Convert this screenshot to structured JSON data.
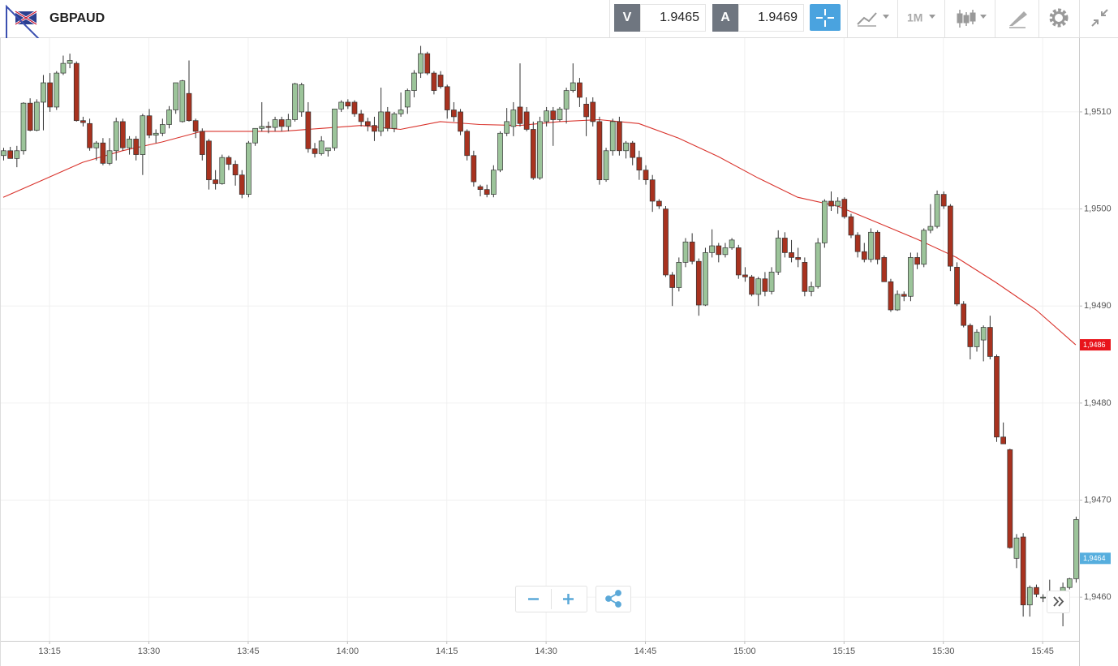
{
  "toolbar": {
    "symbol": "GBPAUD",
    "bid_label": "V",
    "bid": "1.9465",
    "ask_label": "A",
    "ask": "1.9469",
    "timeframe": "1M"
  },
  "chart_data": {
    "type": "candlestick",
    "grid": true,
    "up_color": "#9cc49a",
    "down_color": "#a8321f",
    "wick_color": "#333333",
    "ylim": [
      1.94555,
      1.95176
    ],
    "yticks": [
      {
        "value": 1.946,
        "label": "1,9460"
      },
      {
        "value": 1.947,
        "label": "1,9470"
      },
      {
        "value": 1.948,
        "label": "1,9480"
      },
      {
        "value": 1.949,
        "label": "1,9490"
      },
      {
        "value": 1.95,
        "label": "1,9500"
      },
      {
        "value": 1.951,
        "label": "1,9510"
      }
    ],
    "categories": [
      null,
      null,
      null,
      null,
      null,
      null,
      null,
      "13:15",
      null,
      null,
      null,
      null,
      null,
      null,
      null,
      null,
      null,
      null,
      null,
      null,
      null,
      null,
      "13:30",
      null,
      null,
      null,
      null,
      null,
      null,
      null,
      null,
      null,
      null,
      null,
      null,
      null,
      null,
      "13:45",
      null,
      null,
      null,
      null,
      null,
      null,
      null,
      null,
      null,
      null,
      null,
      null,
      null,
      null,
      "14:00",
      null,
      null,
      null,
      null,
      null,
      null,
      null,
      null,
      null,
      null,
      null,
      null,
      null,
      null,
      "14:15",
      null,
      null,
      null,
      null,
      null,
      null,
      null,
      null,
      null,
      null,
      null,
      null,
      null,
      null,
      "14:30",
      null,
      null,
      null,
      null,
      null,
      null,
      null,
      null,
      null,
      null,
      null,
      null,
      null,
      null,
      "14:45",
      null,
      null,
      null,
      null,
      null,
      null,
      null,
      null,
      null,
      null,
      null,
      null,
      null,
      null,
      "15:00",
      null,
      null,
      null,
      null,
      null,
      null,
      null,
      null,
      null,
      null,
      null,
      null,
      null,
      null,
      "15:15",
      null,
      null,
      null,
      null,
      null,
      null,
      null,
      null,
      null,
      null,
      null,
      null,
      null,
      null,
      "15:30",
      null,
      null,
      null,
      null,
      null,
      null,
      null,
      null,
      null,
      null,
      null,
      null,
      null,
      null,
      "15:45",
      null,
      null,
      null,
      null,
      null
    ],
    "open": [
      1.95055,
      1.9506,
      1.95052,
      1.9506,
      1.95109,
      1.95081,
      1.9511,
      1.9513,
      1.95105,
      1.9514,
      1.9515,
      1.9515,
      1.95091,
      1.95088,
      1.95063,
      1.95068,
      1.95047,
      1.9506,
      1.9509,
      1.95063,
      1.95072,
      1.95056,
      1.95096,
      1.95076,
      1.95078,
      1.95087,
      1.95102,
      1.9509,
      1.95119,
      1.95091,
      1.9508,
      1.9507,
      1.9503,
      1.95026,
      1.95053,
      1.95046,
      1.95035,
      1.95015,
      1.95068,
      1.95083,
      1.95085,
      1.95084,
      1.95092,
      1.95085,
      1.95092,
      1.951,
      1.951,
      1.95062,
      1.95057,
      1.9506,
      1.95063,
      1.95103,
      1.9511,
      1.9511,
      1.95098,
      1.9509,
      1.95086,
      1.9508,
      1.951,
      1.95083,
      1.95098,
      1.95105,
      1.95122,
      1.9514,
      1.9516,
      1.9514,
      1.95138,
      1.95126,
      1.95102,
      1.951,
      1.9508,
      1.95055,
      1.95023,
      1.9502,
      1.95015,
      1.9504,
      1.95078,
      1.95085,
      1.95105,
      1.951,
      1.95082,
      1.95032,
      1.9509,
      1.95101,
      1.95092,
      1.95103,
      1.95122,
      1.9513,
      1.95108,
      1.9511,
      1.9509,
      1.9503,
      1.9506,
      1.9509,
      1.9506,
      1.95068,
      1.95053,
      1.9504,
      1.9503,
      1.95008,
      1.95,
      1.94932,
      1.94919,
      1.94945,
      1.94966,
      1.94946,
      1.94901,
      1.94955,
      1.94962,
      1.94953,
      1.9496,
      1.9496,
      1.94932,
      1.9493,
      1.94912,
      1.94928,
      1.94915,
      1.94935,
      1.9497,
      1.94955,
      1.9495,
      1.94945,
      1.94915,
      1.9492,
      1.94965,
      1.95008,
      1.95003,
      1.9501,
      1.94992,
      1.94973,
      1.94956,
      1.94948,
      1.94976,
      1.9495,
      1.94925,
      1.94896,
      1.94912,
      1.9491,
      1.9495,
      1.94943,
      1.94978,
      1.94982,
      1.95015,
      1.95003,
      1.9494,
      1.94902,
      1.9488,
      1.94858,
      1.94865,
      1.94878,
      1.94848,
      1.94765,
      1.94752,
      1.9464,
      1.94662,
      1.94592,
      1.9461,
      1.946,
      1.946,
      1.94601,
      1.94603,
      1.9461,
      1.94619
    ],
    "high": [
      1.95063,
      1.95064,
      1.95065,
      1.9511,
      1.95114,
      1.95113,
      1.95138,
      1.9514,
      1.95142,
      1.95158,
      1.9516,
      1.95152,
      1.95095,
      1.95093,
      1.9507,
      1.95073,
      1.95073,
      1.95094,
      1.95093,
      1.95075,
      1.95075,
      1.95098,
      1.95103,
      1.95082,
      1.95093,
      1.95106,
      1.9513,
      1.95133,
      1.95153,
      1.95093,
      1.95083,
      1.95072,
      1.9504,
      1.95056,
      1.95055,
      1.9505,
      1.9504,
      1.9507,
      1.95083,
      1.9511,
      1.9509,
      1.95095,
      1.95095,
      1.95098,
      1.9513,
      1.9513,
      1.9511,
      1.95068,
      1.95075,
      1.95063,
      1.95103,
      1.95112,
      1.95113,
      1.95112,
      1.95102,
      1.95094,
      1.95095,
      1.95125,
      1.95105,
      1.951,
      1.9512,
      1.95124,
      1.95143,
      1.95168,
      1.95162,
      1.95142,
      1.95142,
      1.95128,
      1.9511,
      1.95103,
      1.95082,
      1.9506,
      1.95025,
      1.95025,
      1.95045,
      1.9508,
      1.95104,
      1.9511,
      1.9515,
      1.95105,
      1.9509,
      1.95095,
      1.95105,
      1.95105,
      1.95105,
      1.95125,
      1.9515,
      1.95135,
      1.95115,
      1.95115,
      1.95095,
      1.95063,
      1.95093,
      1.95095,
      1.9507,
      1.9507,
      1.9506,
      1.95045,
      1.95035,
      1.9501,
      1.95003,
      1.94935,
      1.9495,
      1.9497,
      1.94975,
      1.94949,
      1.9496,
      1.94979,
      1.94965,
      1.94965,
      1.9497,
      1.94963,
      1.9494,
      1.94932,
      1.9493,
      1.94935,
      1.9494,
      1.94978,
      1.94976,
      1.94968,
      1.9496,
      1.9495,
      1.94925,
      1.9497,
      1.9501,
      1.95018,
      1.95012,
      1.95012,
      1.94995,
      1.94976,
      1.94965,
      1.9498,
      1.94978,
      1.94952,
      1.94928,
      1.94916,
      1.94915,
      1.94955,
      1.94955,
      1.9498,
      1.95005,
      1.95019,
      1.95018,
      1.95005,
      1.94945,
      1.94905,
      1.94882,
      1.94876,
      1.9488,
      1.9489,
      1.9485,
      1.9478,
      1.94753,
      1.94665,
      1.94666,
      1.94612,
      1.94613,
      1.94603,
      1.94618,
      1.94606,
      1.94615,
      1.9462,
      1.94683
    ],
    "low": [
      1.9505,
      1.95052,
      1.95043,
      1.95056,
      1.9508,
      1.9508,
      1.95081,
      1.951,
      1.95102,
      1.95138,
      1.95145,
      1.9509,
      1.95085,
      1.9506,
      1.9505,
      1.95045,
      1.95045,
      1.9505,
      1.9506,
      1.95056,
      1.9505,
      1.95035,
      1.95073,
      1.95068,
      1.95075,
      1.95083,
      1.95098,
      1.95089,
      1.9509,
      1.95073,
      1.9505,
      1.9502,
      1.9502,
      1.95025,
      1.9504,
      1.95024,
      1.95011,
      1.95012,
      1.95065,
      1.9508,
      1.95078,
      1.9508,
      1.9508,
      1.9508,
      1.9509,
      1.95095,
      1.95058,
      1.95053,
      1.95055,
      1.95054,
      1.9506,
      1.951,
      1.95103,
      1.95095,
      1.95085,
      1.9508,
      1.9507,
      1.95075,
      1.9508,
      1.95079,
      1.95095,
      1.95098,
      1.95115,
      1.95135,
      1.95138,
      1.95118,
      1.95124,
      1.95093,
      1.9509,
      1.95076,
      1.9505,
      1.95023,
      1.95013,
      1.95012,
      1.95012,
      1.95038,
      1.95075,
      1.95075,
      1.95085,
      1.9508,
      1.9503,
      1.9503,
      1.95085,
      1.95065,
      1.9509,
      1.95088,
      1.9512,
      1.95105,
      1.95075,
      1.95085,
      1.95025,
      1.95028,
      1.95055,
      1.95055,
      1.95052,
      1.95045,
      1.9503,
      1.95025,
      1.94997,
      1.95,
      1.9493,
      1.949,
      1.94915,
      1.9494,
      1.94943,
      1.9489,
      1.949,
      1.9495,
      1.94945,
      1.9495,
      1.94958,
      1.94928,
      1.94925,
      1.9491,
      1.949,
      1.9491,
      1.94912,
      1.94932,
      1.9495,
      1.94945,
      1.9494,
      1.9491,
      1.9491,
      1.94918,
      1.9496,
      1.94998,
      1.94995,
      1.9499,
      1.9497,
      1.9495,
      1.94945,
      1.94945,
      1.94943,
      1.94925,
      1.94894,
      1.94895,
      1.94905,
      1.94905,
      1.94938,
      1.9494,
      1.94975,
      1.9498,
      1.95,
      1.94936,
      1.949,
      1.94878,
      1.94845,
      1.94853,
      1.94843,
      1.94845,
      1.9476,
      1.94758,
      1.9465,
      1.9463,
      1.9458,
      1.9458,
      1.946,
      1.94595,
      1.9459,
      1.94595,
      1.9457,
      1.94608,
      1.94615
    ],
    "close": [
      1.9506,
      1.95052,
      1.9506,
      1.95109,
      1.95081,
      1.9511,
      1.9513,
      1.95105,
      1.9514,
      1.9515,
      1.95153,
      1.95091,
      1.95089,
      1.95063,
      1.95068,
      1.95047,
      1.9506,
      1.9509,
      1.95063,
      1.95072,
      1.95056,
      1.95096,
      1.95076,
      1.95078,
      1.95087,
      1.95102,
      1.9513,
      1.95132,
      1.95091,
      1.9508,
      1.95056,
      1.9503,
      1.95026,
      1.95053,
      1.95046,
      1.95035,
      1.95015,
      1.95068,
      1.95083,
      1.95085,
      1.95084,
      1.95092,
      1.95085,
      1.95092,
      1.95129,
      1.95128,
      1.95062,
      1.95057,
      1.9507,
      1.95063,
      1.95103,
      1.9511,
      1.95106,
      1.95098,
      1.9509,
      1.95086,
      1.9508,
      1.951,
      1.95083,
      1.95098,
      1.95102,
      1.95122,
      1.9514,
      1.9516,
      1.9514,
      1.95122,
      1.95126,
      1.95102,
      1.95095,
      1.9508,
      1.95055,
      1.95028,
      1.9502,
      1.95015,
      1.9504,
      1.95078,
      1.9509,
      1.95102,
      1.95088,
      1.95082,
      1.95032,
      1.9509,
      1.95101,
      1.95092,
      1.95103,
      1.95122,
      1.9513,
      1.95115,
      1.95095,
      1.9509,
      1.9503,
      1.9506,
      1.9509,
      1.9506,
      1.95068,
      1.95053,
      1.9504,
      1.9503,
      1.95008,
      1.95003,
      1.94932,
      1.94919,
      1.94945,
      1.94966,
      1.94946,
      1.94901,
      1.94955,
      1.94962,
      1.94953,
      1.9496,
      1.94968,
      1.94932,
      1.9493,
      1.94912,
      1.94928,
      1.94915,
      1.94935,
      1.9497,
      1.94955,
      1.9495,
      1.94948,
      1.94915,
      1.9492,
      1.94965,
      1.95008,
      1.95003,
      1.95008,
      1.94992,
      1.94973,
      1.94956,
      1.94948,
      1.94976,
      1.94948,
      1.94925,
      1.94896,
      1.94912,
      1.9491,
      1.9495,
      1.94943,
      1.94978,
      1.94982,
      1.95015,
      1.95003,
      1.94941,
      1.94902,
      1.9488,
      1.94858,
      1.94873,
      1.94878,
      1.94848,
      1.94765,
      1.94758,
      1.94651,
      1.94661,
      1.94592,
      1.9461,
      1.94603,
      1.946,
      1.94601,
      1.94603,
      1.9461,
      1.94619,
      1.9468
    ],
    "moving_average": {
      "color": "#d9322b",
      "x": [
        0,
        6,
        12,
        18,
        24,
        30,
        36,
        42,
        48,
        54,
        60,
        66,
        72,
        78,
        84,
        90,
        96,
        102,
        108,
        114,
        120,
        126,
        132,
        138,
        144,
        150,
        156,
        162
      ],
      "values": [
        1.95012,
        1.9503,
        1.95048,
        1.9506,
        1.95069,
        1.9508,
        1.9508,
        1.9508,
        1.95083,
        1.95086,
        1.95082,
        1.9509,
        1.95087,
        1.95086,
        1.9509,
        1.95092,
        1.95088,
        1.95073,
        1.95054,
        1.95032,
        1.95012,
        1.95003,
        1.94986,
        1.94969,
        1.9495,
        1.94924,
        1.94896,
        1.9486
      ]
    },
    "price_markers": [
      {
        "value": 1.9486,
        "label": "1,9486",
        "color": "#e8141b"
      },
      {
        "value": 1.9464,
        "label": "1,9464",
        "color": "#56aede"
      }
    ]
  }
}
